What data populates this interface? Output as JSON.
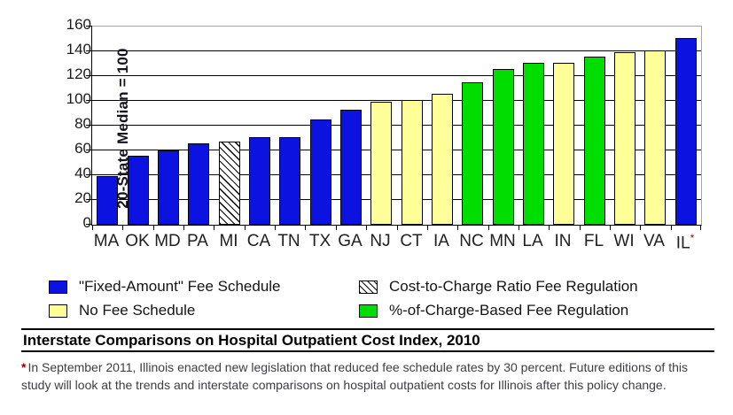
{
  "chart_data": {
    "type": "bar",
    "title": "Interstate Comparisons on Hospital Outpatient Cost Index, 2010",
    "ylabel": "20-State Median = 100",
    "ylim": [
      0,
      160
    ],
    "ytick_step": 20,
    "yticks": [
      0,
      20,
      40,
      60,
      80,
      100,
      120,
      140,
      160
    ],
    "grid": "horizontal-black-lines",
    "legend_position": "below-two-columns",
    "categories": [
      "MA",
      "OK",
      "MD",
      "PA",
      "MI",
      "CA",
      "TN",
      "TX",
      "GA",
      "NJ",
      "CT",
      "IA",
      "NC",
      "MN",
      "LA",
      "IN",
      "FL",
      "WI",
      "VA",
      "IL"
    ],
    "values": [
      39,
      56,
      60,
      66,
      67,
      71,
      71,
      85,
      93,
      99,
      101,
      106,
      115,
      126,
      131,
      131,
      136,
      139,
      141,
      151
    ],
    "points": [
      {
        "state": "MA",
        "value": 39,
        "group": "fixed"
      },
      {
        "state": "OK",
        "value": 56,
        "group": "fixed"
      },
      {
        "state": "MD",
        "value": 60,
        "group": "fixed"
      },
      {
        "state": "PA",
        "value": 66,
        "group": "fixed"
      },
      {
        "state": "MI",
        "value": 67,
        "group": "ctc"
      },
      {
        "state": "CA",
        "value": 71,
        "group": "fixed"
      },
      {
        "state": "TN",
        "value": 71,
        "group": "fixed"
      },
      {
        "state": "TX",
        "value": 85,
        "group": "fixed"
      },
      {
        "state": "GA",
        "value": 93,
        "group": "fixed"
      },
      {
        "state": "NJ",
        "value": 99,
        "group": "none"
      },
      {
        "state": "CT",
        "value": 101,
        "group": "none"
      },
      {
        "state": "IA",
        "value": 106,
        "group": "none"
      },
      {
        "state": "NC",
        "value": 115,
        "group": "pct"
      },
      {
        "state": "MN",
        "value": 126,
        "group": "pct"
      },
      {
        "state": "LA",
        "value": 131,
        "group": "pct"
      },
      {
        "state": "IN",
        "value": 131,
        "group": "none"
      },
      {
        "state": "FL",
        "value": 136,
        "group": "pct"
      },
      {
        "state": "WI",
        "value": 139,
        "group": "none"
      },
      {
        "state": "VA",
        "value": 141,
        "group": "none"
      },
      {
        "state": "IL",
        "value": 151,
        "group": "fixed",
        "footnote": true
      }
    ],
    "colors": {
      "fixed": "#0c12e0",
      "none": "#ffff99",
      "pct": "#00dd00",
      "ctc_hatch_fg": "#000000",
      "ctc_hatch_bg": "#ffffff",
      "bar_border": "#000000",
      "gridline": "#000000",
      "plot_border": "#a6a6a6"
    }
  },
  "legend": {
    "columns": [
      {
        "items": [
          {
            "group": "fixed",
            "label": "\"Fixed-Amount\" Fee Schedule"
          },
          {
            "group": "none",
            "label": "No Fee Schedule"
          }
        ]
      },
      {
        "items": [
          {
            "group": "ctc",
            "label": "Cost-to-Charge Ratio Fee Regulation"
          },
          {
            "group": "pct",
            "label": "%-of-Charge-Based Fee Regulation"
          }
        ]
      }
    ]
  },
  "footnote": {
    "marker": "*",
    "text": "In September 2011, Illinois enacted new legislation that reduced fee schedule rates by 30 percent. Future editions of this study will look at the trends and interstate comparisons on hospital outpatient costs for Illinois after this policy change."
  }
}
